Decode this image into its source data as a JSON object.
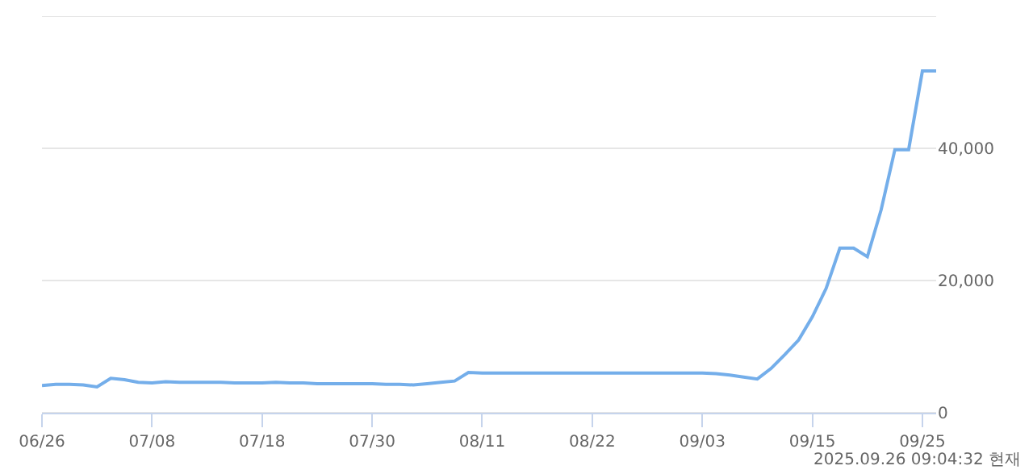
{
  "chart_data": {
    "type": "line",
    "categories": [
      "06/26",
      null,
      null,
      null,
      null,
      null,
      null,
      null,
      "07/08",
      null,
      null,
      null,
      null,
      null,
      null,
      null,
      "07/18",
      null,
      null,
      null,
      null,
      null,
      null,
      null,
      "07/30",
      null,
      null,
      null,
      null,
      null,
      null,
      null,
      "08/11",
      null,
      null,
      null,
      null,
      null,
      null,
      null,
      "08/22",
      null,
      null,
      null,
      null,
      null,
      null,
      null,
      "09/03",
      null,
      null,
      null,
      null,
      null,
      null,
      null,
      "09/15",
      null,
      null,
      null,
      null,
      null,
      null,
      null,
      "09/25",
      null
    ],
    "values": [
      4100,
      4300,
      4300,
      4200,
      3900,
      5200,
      5000,
      4600,
      4500,
      4700,
      4600,
      4600,
      4600,
      4600,
      4500,
      4500,
      4500,
      4600,
      4500,
      4500,
      4400,
      4400,
      4400,
      4400,
      4400,
      4300,
      4300,
      4200,
      4400,
      4600,
      4800,
      6100,
      6000,
      6000,
      6000,
      6000,
      6000,
      6000,
      6000,
      6000,
      6000,
      6000,
      6000,
      6000,
      6000,
      6000,
      6000,
      6000,
      6000,
      5900,
      5700,
      5400,
      5100,
      6700,
      8800,
      11000,
      14500,
      18800,
      24900,
      24900,
      23600,
      30700,
      39800,
      39800,
      51700,
      51700
    ],
    "color": "#74aeea",
    "ylim": [
      0,
      60000
    ],
    "yticks": [
      0,
      {
        "value": 20000,
        "label": "20,000"
      },
      {
        "value": 40000,
        "label": "40,000"
      },
      {
        "value": 60000,
        "label": null
      }
    ],
    "grid": "y",
    "legend": false,
    "marker": "none",
    "line_style": "solid",
    "annotations": [
      "2025.09.26 09:04:32 현재"
    ]
  }
}
